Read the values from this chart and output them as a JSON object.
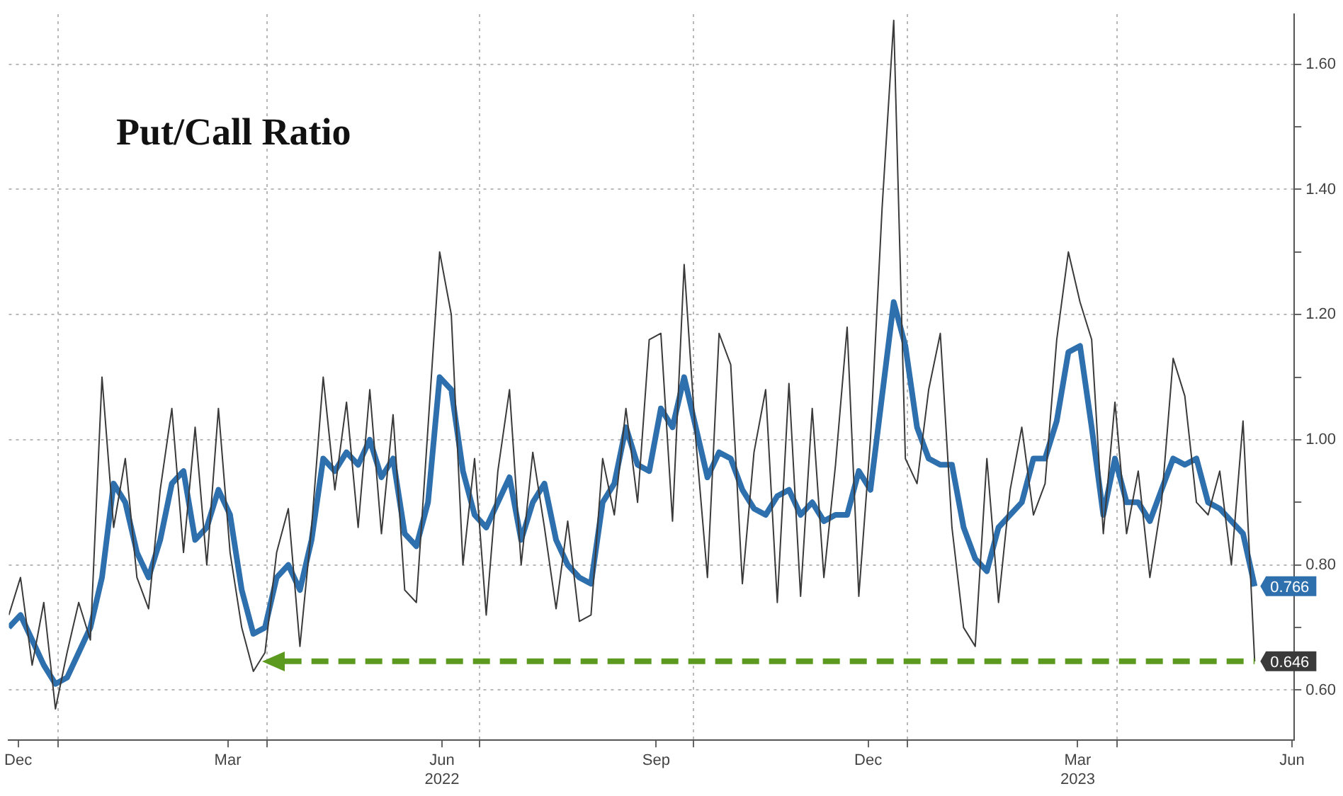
{
  "chart_data": {
    "type": "line",
    "title": "Put/Call Ratio",
    "x": [
      "2021-12-11",
      "2021-12-16",
      "2021-12-21",
      "2021-12-26",
      "2021-12-31",
      "2022-01-05",
      "2022-01-10",
      "2022-01-15",
      "2022-01-20",
      "2022-01-25",
      "2022-01-30",
      "2022-02-04",
      "2022-02-09",
      "2022-02-14",
      "2022-02-19",
      "2022-02-24",
      "2022-03-01",
      "2022-03-06",
      "2022-03-11",
      "2022-03-16",
      "2022-03-21",
      "2022-03-26",
      "2022-03-31",
      "2022-04-05",
      "2022-04-10",
      "2022-04-15",
      "2022-04-20",
      "2022-04-25",
      "2022-04-30",
      "2022-05-05",
      "2022-05-10",
      "2022-05-15",
      "2022-05-20",
      "2022-05-25",
      "2022-05-30",
      "2022-06-04",
      "2022-06-09",
      "2022-06-14",
      "2022-06-19",
      "2022-06-24",
      "2022-06-29",
      "2022-07-04",
      "2022-07-09",
      "2022-07-14",
      "2022-07-19",
      "2022-07-24",
      "2022-07-29",
      "2022-08-03",
      "2022-08-08",
      "2022-08-13",
      "2022-08-18",
      "2022-08-23",
      "2022-08-28",
      "2022-09-02",
      "2022-09-07",
      "2022-09-12",
      "2022-09-17",
      "2022-09-22",
      "2022-09-27",
      "2022-10-02",
      "2022-10-07",
      "2022-10-12",
      "2022-10-17",
      "2022-10-22",
      "2022-10-27",
      "2022-11-01",
      "2022-11-06",
      "2022-11-11",
      "2022-11-16",
      "2022-11-21",
      "2022-11-26",
      "2022-12-01",
      "2022-12-06",
      "2022-12-11",
      "2022-12-16",
      "2022-12-21",
      "2022-12-26",
      "2022-12-31",
      "2023-01-05",
      "2023-01-10",
      "2023-01-15",
      "2023-01-20",
      "2023-01-25",
      "2023-01-30",
      "2023-02-04",
      "2023-02-09",
      "2023-02-14",
      "2023-02-19",
      "2023-02-24",
      "2023-03-01",
      "2023-03-06",
      "2023-03-11",
      "2023-03-16",
      "2023-03-21",
      "2023-03-26",
      "2023-03-31",
      "2023-04-05",
      "2023-04-10",
      "2023-04-15",
      "2023-04-20",
      "2023-04-25",
      "2023-04-30",
      "2023-05-05",
      "2023-05-10",
      "2023-05-15",
      "2023-05-20",
      "2023-05-25",
      "2023-05-30"
    ],
    "series": [
      {
        "color": "#3a3a3a",
        "values": [
          0.72,
          0.78,
          0.64,
          0.74,
          0.57,
          0.66,
          0.74,
          0.68,
          1.1,
          0.86,
          0.97,
          0.78,
          0.73,
          0.92,
          1.05,
          0.82,
          1.02,
          0.8,
          1.05,
          0.82,
          0.7,
          0.63,
          0.66,
          0.82,
          0.89,
          0.67,
          0.86,
          1.1,
          0.92,
          1.06,
          0.86,
          1.08,
          0.85,
          1.04,
          0.76,
          0.74,
          1.02,
          1.3,
          1.2,
          0.8,
          0.97,
          0.72,
          0.95,
          1.08,
          0.8,
          0.98,
          0.86,
          0.73,
          0.87,
          0.71,
          0.72,
          0.97,
          0.88,
          1.05,
          0.9,
          1.16,
          1.17,
          0.87,
          1.28,
          1.0,
          0.78,
          1.17,
          1.12,
          0.77,
          0.98,
          1.08,
          0.74,
          1.09,
          0.75,
          1.05,
          0.78,
          0.96,
          1.18,
          0.75,
          1.0,
          1.37,
          1.67,
          0.97,
          0.93,
          1.08,
          1.17,
          0.86,
          0.7,
          0.67,
          0.97,
          0.74,
          0.92,
          1.02,
          0.88,
          0.93,
          1.16,
          1.3,
          1.22,
          1.16,
          0.85,
          1.06,
          0.85,
          0.95,
          0.78,
          0.9,
          1.13,
          1.07,
          0.9,
          0.88,
          0.95,
          0.8,
          1.03,
          0.646
        ],
        "value_labels": [
          null,
          null,
          null,
          null,
          null,
          null,
          null,
          null,
          null,
          null,
          null,
          null,
          null,
          null,
          null,
          null,
          null,
          null,
          null,
          null,
          null,
          null,
          null,
          null,
          null,
          null,
          null,
          null,
          null,
          null,
          null,
          null,
          null,
          null,
          null,
          null,
          null,
          null,
          null,
          null,
          null,
          null,
          null,
          null,
          null,
          null,
          null,
          null,
          null,
          null,
          null,
          null,
          null,
          null,
          null,
          null,
          null,
          null,
          null,
          null,
          null,
          null,
          null,
          null,
          null,
          null,
          null,
          null,
          null,
          null,
          null,
          null,
          null,
          null,
          null,
          null,
          null,
          null,
          null,
          null,
          null,
          null,
          null,
          null,
          null,
          null,
          null,
          null,
          null,
          null,
          null,
          null,
          null,
          null,
          null,
          null,
          null,
          null,
          null,
          null,
          null,
          null,
          null,
          null,
          null,
          null,
          null,
          "0.646"
        ]
      },
      {
        "color": "#2e6fad",
        "values": [
          0.7,
          0.72,
          0.68,
          0.64,
          0.61,
          0.62,
          0.66,
          0.7,
          0.78,
          0.93,
          0.9,
          0.82,
          0.78,
          0.84,
          0.93,
          0.95,
          0.84,
          0.86,
          0.92,
          0.88,
          0.76,
          0.69,
          0.7,
          0.78,
          0.8,
          0.76,
          0.84,
          0.97,
          0.95,
          0.98,
          0.96,
          1.0,
          0.94,
          0.97,
          0.85,
          0.83,
          0.9,
          1.1,
          1.08,
          0.95,
          0.88,
          0.86,
          0.9,
          0.94,
          0.84,
          0.9,
          0.93,
          0.84,
          0.8,
          0.78,
          0.77,
          0.9,
          0.93,
          1.02,
          0.96,
          0.95,
          1.05,
          1.02,
          1.1,
          1.02,
          0.94,
          0.98,
          0.97,
          0.92,
          0.89,
          0.88,
          0.91,
          0.92,
          0.88,
          0.9,
          0.87,
          0.88,
          0.88,
          0.95,
          0.92,
          1.07,
          1.22,
          1.15,
          1.02,
          0.97,
          0.96,
          0.96,
          0.86,
          0.81,
          0.79,
          0.86,
          0.88,
          0.9,
          0.97,
          0.97,
          1.03,
          1.14,
          1.15,
          1.02,
          0.88,
          0.97,
          0.9,
          0.9,
          0.87,
          0.92,
          0.97,
          0.96,
          0.97,
          0.9,
          0.89,
          0.87,
          0.85,
          0.766
        ],
        "value_labels": [
          null,
          null,
          null,
          null,
          null,
          null,
          null,
          null,
          null,
          null,
          null,
          null,
          null,
          null,
          null,
          null,
          null,
          null,
          null,
          null,
          null,
          null,
          null,
          null,
          null,
          null,
          null,
          null,
          null,
          null,
          null,
          null,
          null,
          null,
          null,
          null,
          null,
          null,
          null,
          null,
          null,
          null,
          null,
          null,
          null,
          null,
          null,
          null,
          null,
          null,
          null,
          null,
          null,
          null,
          null,
          null,
          null,
          null,
          null,
          null,
          null,
          null,
          null,
          null,
          null,
          null,
          null,
          null,
          null,
          null,
          null,
          null,
          null,
          null,
          null,
          null,
          null,
          null,
          null,
          null,
          null,
          null,
          null,
          null,
          null,
          null,
          null,
          null,
          null,
          null,
          null,
          null,
          null,
          null,
          null,
          null,
          null,
          null,
          null,
          null,
          null,
          null,
          null,
          null,
          null,
          null,
          null,
          "0.766"
        ]
      }
    ],
    "xlim": [
      "2021-12-11",
      "2023-06-16"
    ],
    "xticks": [
      {
        "value": "2021-12-15",
        "label": "Dec"
      },
      {
        "value": "2022-01-01",
        "label": null
      },
      {
        "value": "2022-03-15",
        "label": "Mar"
      },
      {
        "value": "2022-04-01",
        "label": null
      },
      {
        "value": "2022-06-15",
        "label": "Jun\n2022"
      },
      {
        "value": "2022-07-01",
        "label": null
      },
      {
        "value": "2022-09-15",
        "label": "Sep"
      },
      {
        "value": "2022-10-01",
        "label": null
      },
      {
        "value": "2022-12-15",
        "label": "Dec"
      },
      {
        "value": "2023-01-01",
        "label": null
      },
      {
        "value": "2023-03-15",
        "label": "Mar\n2023"
      },
      {
        "value": "2023-04-01",
        "label": null
      },
      {
        "value": "2023-06-15",
        "label": "Jun"
      }
    ],
    "ylim": [
      0.52,
      1.68
    ],
    "yticks": [
      {
        "value": 0.6,
        "label": "0.60"
      },
      {
        "value": 0.7,
        "label": null
      },
      {
        "value": 0.8,
        "label": "0.80"
      },
      {
        "value": 0.9,
        "label": null
      },
      {
        "value": 1.0,
        "label": "1.00"
      },
      {
        "value": 1.1,
        "label": null
      },
      {
        "value": 1.2,
        "label": "1.20"
      },
      {
        "value": 1.3,
        "label": null
      },
      {
        "value": 1.4,
        "label": "1.40"
      },
      {
        "value": 1.5,
        "label": null
      },
      {
        "value": 1.6,
        "label": "1.60"
      }
    ],
    "ref_lines": [
      {
        "axis": "y",
        "value": 0.646,
        "color": "#5b9a1f",
        "line_style": "dashed"
      }
    ],
    "grid": true,
    "legend": false,
    "marker": "none",
    "line_style": "solid"
  }
}
